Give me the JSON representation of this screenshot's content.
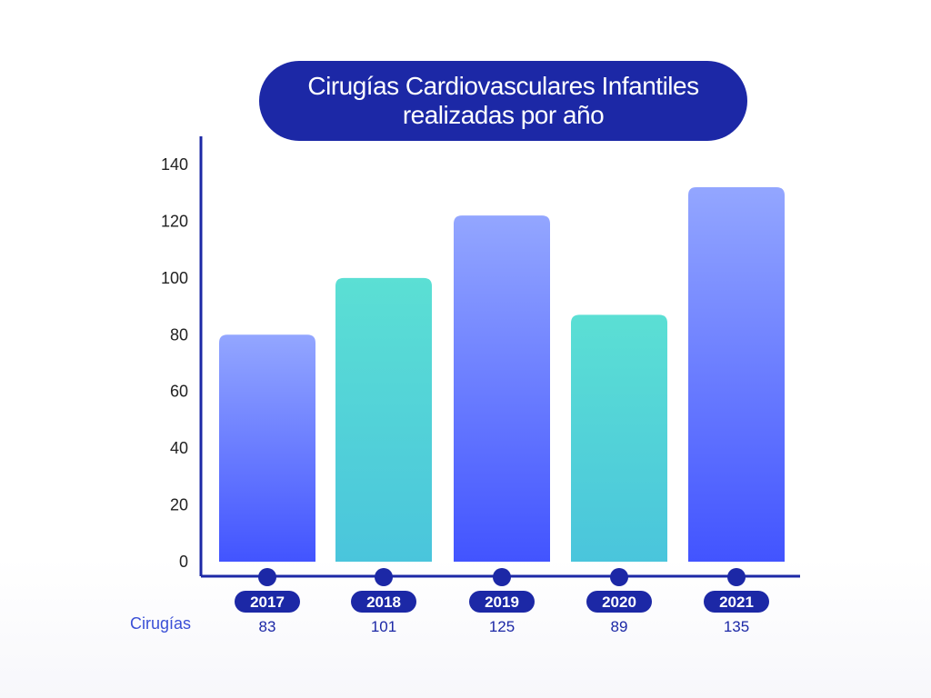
{
  "chart_data": {
    "type": "bar",
    "title_line1": "Cirugías Cardiovasculares Infantiles",
    "title_line2": "realizadas por año",
    "categories": [
      "2017",
      "2018",
      "2019",
      "2020",
      "2021"
    ],
    "series": [
      {
        "values": [
          83,
          101,
          125,
          89,
          135
        ]
      }
    ],
    "bar_heights_read": [
      80,
      100,
      122,
      87,
      132
    ],
    "yticks": [
      0,
      20,
      40,
      60,
      80,
      100,
      120,
      140
    ],
    "ylim": [
      0,
      150
    ],
    "row_label": "Cirugías",
    "grid": false,
    "colors": {
      "title_bg": "#1c28a6",
      "axis": "#1c28a6",
      "blue_top": "#93a6ff",
      "blue_bottom": "#4254ff",
      "teal_top": "#5bdfd4",
      "teal_bottom": "#4ac5dc",
      "marker": "#1c28a6",
      "value_text": "#1c28a6",
      "row_label_text": "#3a4fd6"
    },
    "bar_color_pattern": [
      "blue",
      "teal",
      "blue",
      "teal",
      "blue"
    ]
  }
}
